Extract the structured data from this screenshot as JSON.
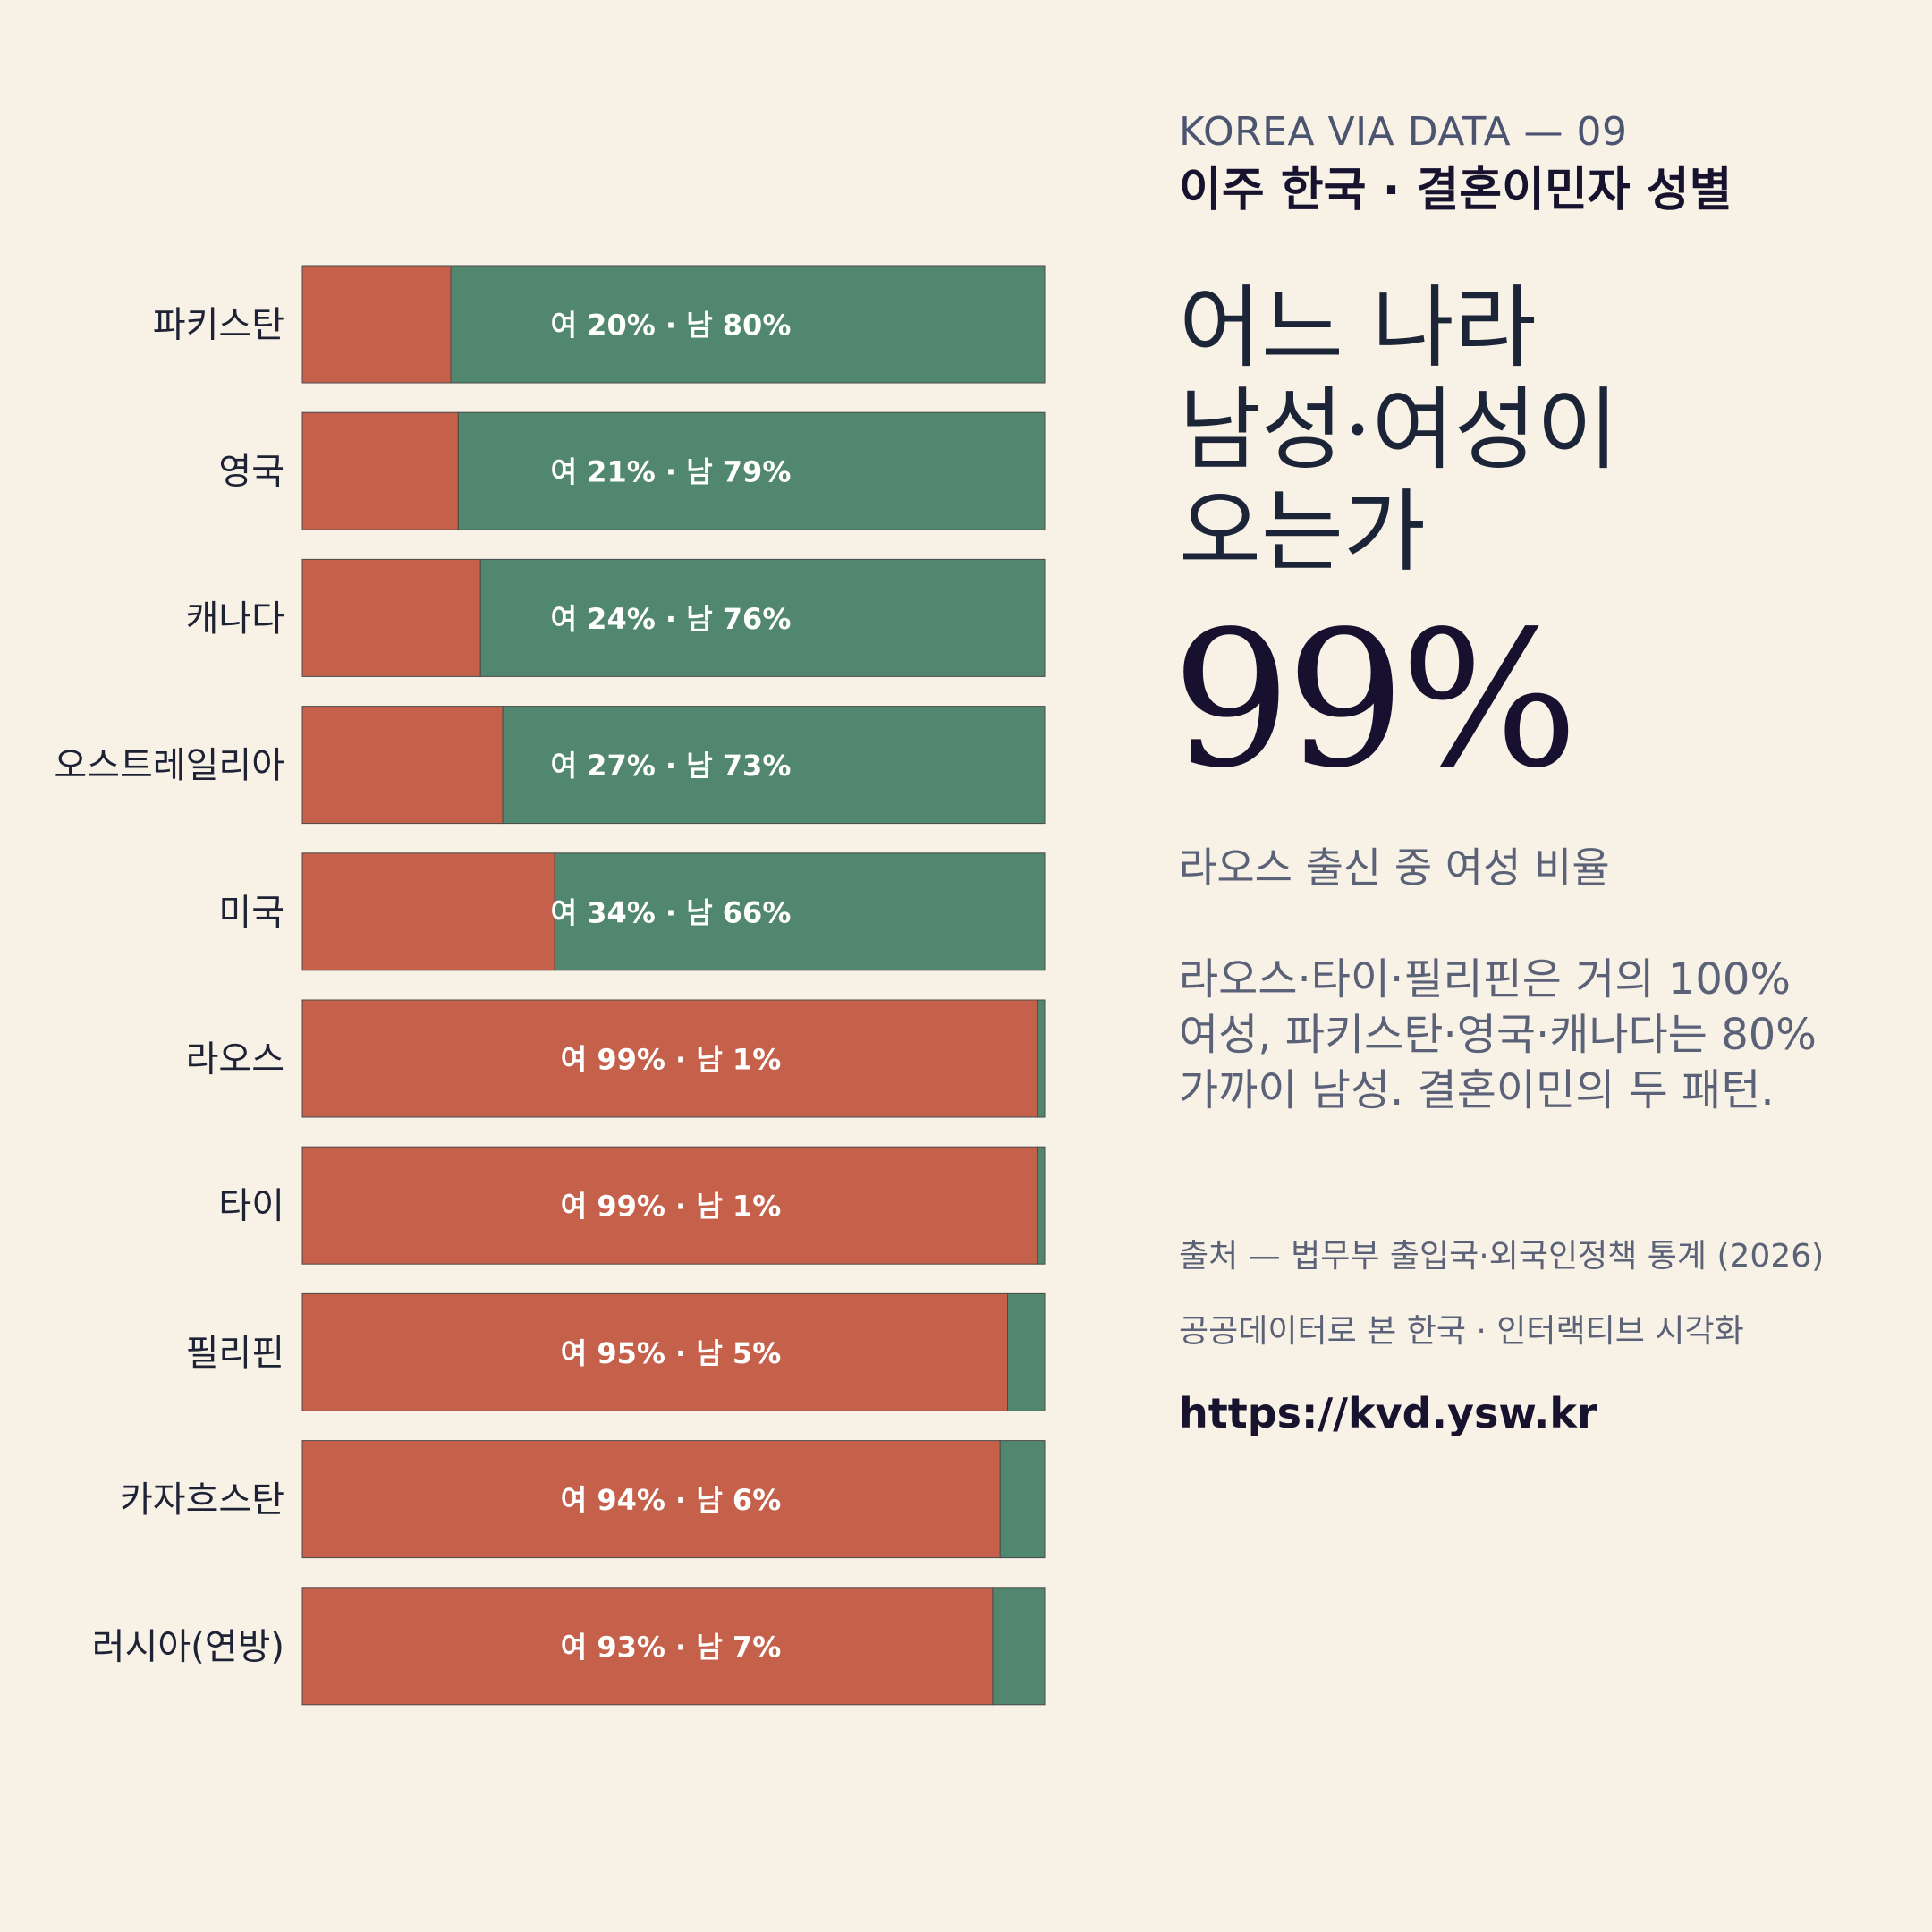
{
  "colors": {
    "female": "#c5614b",
    "male": "#52876f",
    "background": "#f7f1e6"
  },
  "panel": {
    "kicker": "KOREA VIA DATA — 09",
    "series_title": "이주 한국 · 결혼이민자 성별",
    "headline": "어느 나라\n남성·여성이\n오는가",
    "big_number": "99%",
    "stat_label": "라오스 출신 중 여성 비율",
    "description": "라오스·타이·필리핀은 거의 100%\n여성, 파키스탄·영국·캐나다는 80%\n가까이 남성. 결혼이민의 두 패턴.",
    "source": "출처 — 법무부 출입국·외국인정책 통계 (2026)",
    "tagline": "공공데이터로 본 한국 · 인터랙티브 시각화",
    "url": "https://kvd.ysw.kr"
  },
  "chart_data": {
    "type": "bar",
    "orientation": "horizontal",
    "stacked": true,
    "percent": true,
    "categories": [
      "파키스탄",
      "영국",
      "캐나다",
      "오스트레일리아",
      "미국",
      "라오스",
      "타이",
      "필리핀",
      "카자흐스탄",
      "러시아(연방)"
    ],
    "series": [
      {
        "values": [
          20,
          21,
          24,
          27,
          34,
          99,
          99,
          95,
          94,
          93
        ]
      },
      {
        "values": [
          80,
          79,
          76,
          73,
          66,
          1,
          1,
          5,
          6,
          7
        ]
      }
    ],
    "bar_labels": [
      "여 20% · 남 80%",
      "여 21% · 남 79%",
      "여 24% · 남 76%",
      "여 27% · 남 73%",
      "여 34% · 남 66%",
      "여 99% · 남 1%",
      "여 99% · 남 1%",
      "여 95% · 남 5%",
      "여 94% · 남 6%",
      "여 93% · 남 7%"
    ],
    "xlim": [
      0,
      100
    ]
  }
}
